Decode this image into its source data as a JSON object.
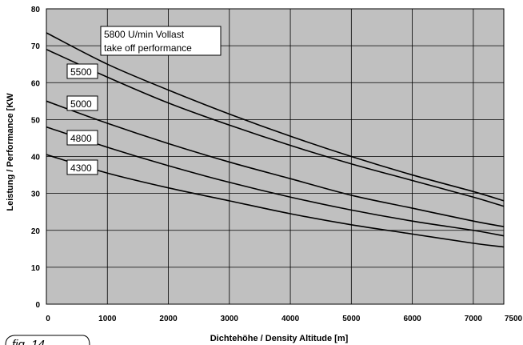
{
  "figure_label": "fig. 14",
  "chart_data": {
    "type": "line",
    "xlabel": "Dichtehöhe / Density Altitude [m]",
    "ylabel": "Leistung / Performance [KW",
    "xlim": [
      0,
      7500
    ],
    "ylim": [
      0,
      80
    ],
    "xticks": [
      0,
      1000,
      2000,
      3000,
      4000,
      5000,
      6000,
      7000,
      7500
    ],
    "xtick_labels": [
      "0",
      "1000",
      "2000",
      "3000",
      "4000",
      "5000",
      "6000",
      "7000",
      "7500"
    ],
    "yticks": [
      0,
      10,
      20,
      30,
      40,
      50,
      60,
      70,
      80
    ],
    "ytick_labels": [
      "0",
      "10",
      "20",
      "30",
      "40",
      "50",
      "60",
      "70",
      "80"
    ],
    "grid": true,
    "background": "#c0c0c0",
    "series": [
      {
        "name": "5800 U/min Vollast take off performance",
        "label_lines": [
          "5800 U/min Vollast",
          "take off performance"
        ],
        "x": [
          0,
          1000,
          2000,
          3000,
          4000,
          5000,
          6000,
          7000,
          7500
        ],
        "values": [
          73.5,
          65,
          58,
          51.5,
          45.5,
          40,
          35,
          30.5,
          28
        ]
      },
      {
        "name": "5500",
        "label_lines": [
          "5500"
        ],
        "x": [
          0,
          1000,
          2000,
          3000,
          4000,
          5000,
          6000,
          7000,
          7500
        ],
        "values": [
          69,
          61.5,
          54.5,
          48.5,
          43,
          38,
          33.5,
          29,
          26.5
        ]
      },
      {
        "name": "5000",
        "label_lines": [
          "5000"
        ],
        "x": [
          0,
          1000,
          2000,
          3000,
          4000,
          5000,
          6000,
          7000,
          7500
        ],
        "values": [
          55,
          49,
          43.5,
          38.5,
          34,
          29.5,
          26,
          22.5,
          21
        ]
      },
      {
        "name": "4800",
        "label_lines": [
          "4800"
        ],
        "x": [
          0,
          1000,
          2000,
          3000,
          4000,
          5000,
          6000,
          7000,
          7500
        ],
        "values": [
          48,
          42.5,
          37.5,
          33,
          29,
          25.5,
          22.5,
          20,
          18.5
        ]
      },
      {
        "name": "4300",
        "label_lines": [
          "4300"
        ],
        "x": [
          0,
          1000,
          2000,
          3000,
          4000,
          5000,
          6000,
          7000,
          7500
        ],
        "values": [
          40.5,
          35.5,
          31.5,
          28,
          24.5,
          21.5,
          19,
          16.5,
          15.5
        ]
      }
    ]
  }
}
